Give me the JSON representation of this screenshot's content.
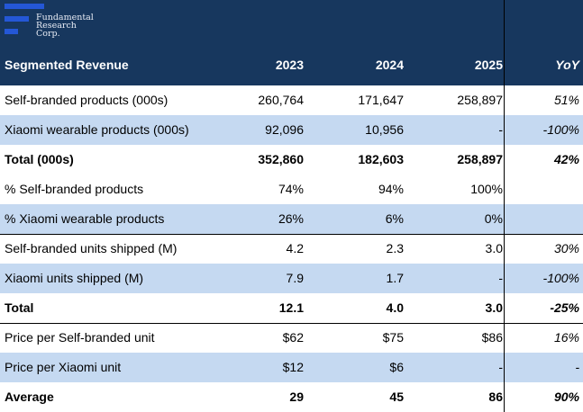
{
  "brand": {
    "logo_lines": [
      "Fundamental",
      "Research",
      "Corp."
    ],
    "colors": {
      "header_bg": "#17375e",
      "logo_bar": "#2457d6",
      "alt_row": "#c5d9f1"
    }
  },
  "header": {
    "title": "Segmented Revenue",
    "columns": [
      "2023",
      "2024",
      "2025",
      "YoY"
    ]
  },
  "rows": [
    {
      "label": "Self-branded products (000s)",
      "v2023": "260,764",
      "v2024": "171,647",
      "v2025": "258,897",
      "yoy": "51%"
    },
    {
      "label": "Xiaomi wearable products (000s)",
      "v2023": "92,096",
      "v2024": "10,956",
      "v2025": "-",
      "yoy": "-100%"
    },
    {
      "label": "Total (000s)",
      "v2023": "352,860",
      "v2024": "182,603",
      "v2025": "258,897",
      "yoy": "42%"
    },
    {
      "label": "% Self-branded products",
      "v2023": "74%",
      "v2024": "94%",
      "v2025": "100%",
      "yoy": ""
    },
    {
      "label": "% Xiaomi wearable products",
      "v2023": "26%",
      "v2024": "6%",
      "v2025": "0%",
      "yoy": ""
    },
    {
      "label": "Self-branded units shipped (M)",
      "v2023": "4.2",
      "v2024": "2.3",
      "v2025": "3.0",
      "yoy": "30%"
    },
    {
      "label": "Xiaomi units shipped (M)",
      "v2023": "7.9",
      "v2024": "1.7",
      "v2025": "-",
      "yoy": "-100%"
    },
    {
      "label": "Total",
      "v2023": "12.1",
      "v2024": "4.0",
      "v2025": "3.0",
      "yoy": "-25%"
    },
    {
      "label": "Price per Self-branded unit",
      "v2023": "$62",
      "v2024": "$75",
      "v2025": "$86",
      "yoy": "16%"
    },
    {
      "label": "Price per Xiaomi unit",
      "v2023": "$12",
      "v2024": "$6",
      "v2025": "-",
      "yoy": "-"
    },
    {
      "label": "Average",
      "v2023": "29",
      "v2024": "45",
      "v2025": "86",
      "yoy": "90%"
    }
  ]
}
